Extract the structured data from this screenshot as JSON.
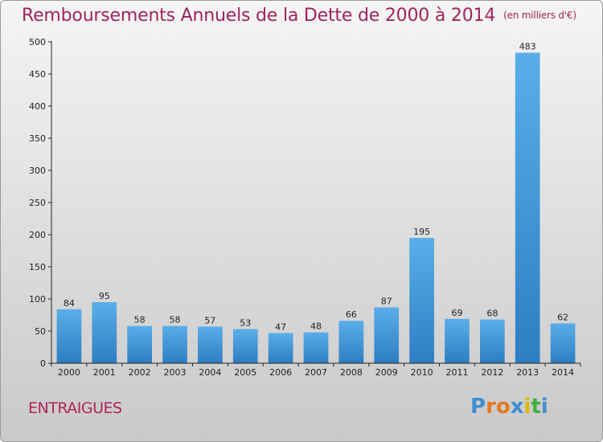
{
  "title": "Remboursements Annuels de la Dette de 2000 à 2014",
  "subtitle": "(en milliers d'€)",
  "commune": "ENTRAIGUES",
  "logo": {
    "letters": [
      "P",
      "r",
      "o",
      "x",
      "i",
      "t",
      "i"
    ],
    "colors": [
      "#3e8ed0",
      "#e27a26",
      "#e27a26",
      "#3e8ed0",
      "#e0b800",
      "#3eb03e",
      "#3e8ed0"
    ]
  },
  "colors": {
    "bar_top": "#5aaee8",
    "bar_bottom": "#2d7ec2",
    "title": "#a0245a",
    "axis_text": "#222222"
  },
  "chart_data": {
    "type": "bar",
    "categories": [
      "2000",
      "2001",
      "2002",
      "2003",
      "2004",
      "2005",
      "2006",
      "2007",
      "2008",
      "2009",
      "2010",
      "2011",
      "2012",
      "2013",
      "2014"
    ],
    "values": [
      84,
      95,
      58,
      58,
      57,
      53,
      47,
      48,
      66,
      87,
      195,
      69,
      68,
      483,
      62
    ],
    "ylim": [
      0,
      500
    ],
    "yticks": [
      "0",
      "50",
      "100",
      "150",
      "200",
      "250",
      "300",
      "350",
      "400",
      "450",
      "500"
    ],
    "grid": false,
    "data_labels": true
  }
}
